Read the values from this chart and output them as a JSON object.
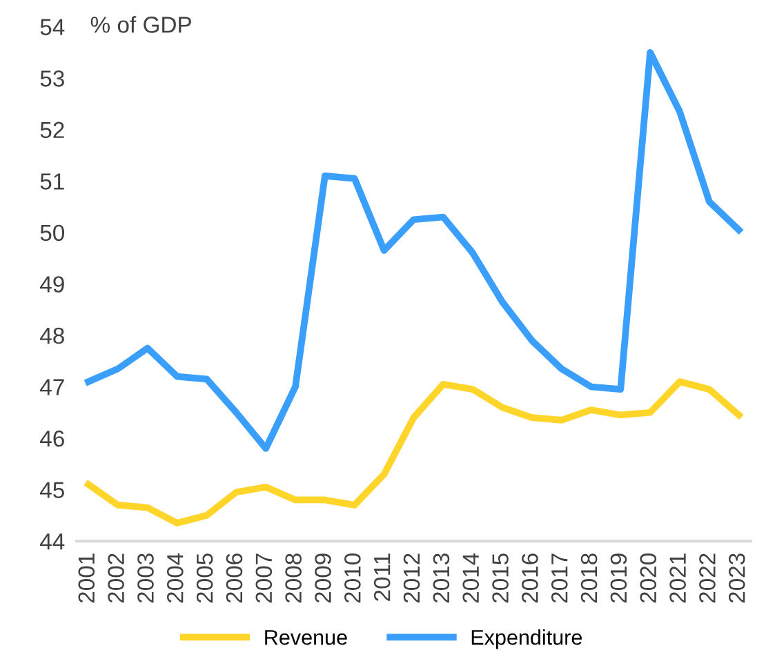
{
  "chart_data": {
    "type": "line",
    "ylabel": "% of GDP",
    "categories": [
      "2001",
      "2002",
      "2003",
      "2004",
      "2005",
      "2006",
      "2007",
      "2008",
      "2009",
      "2010",
      "2011",
      "2012",
      "2013",
      "2014",
      "2015",
      "2016",
      "2017",
      "2018",
      "2019",
      "2020",
      "2021",
      "2022",
      "2023"
    ],
    "series": [
      {
        "name": "Revenue",
        "color": "#ffd52a",
        "values": [
          45.1,
          44.7,
          44.65,
          44.35,
          44.5,
          44.95,
          45.05,
          44.8,
          44.8,
          44.7,
          45.3,
          46.4,
          47.05,
          46.95,
          46.6,
          46.4,
          46.35,
          46.55,
          46.45,
          46.5,
          47.1,
          46.95,
          46.45
        ]
      },
      {
        "name": "Expenditure",
        "color": "#3a9ffb",
        "values": [
          47.1,
          47.35,
          47.75,
          47.2,
          47.15,
          46.5,
          45.8,
          47.0,
          51.1,
          51.05,
          49.65,
          50.25,
          50.3,
          49.6,
          48.65,
          47.9,
          47.35,
          47.0,
          46.95,
          53.5,
          52.35,
          50.6,
          50.05
        ]
      }
    ],
    "ylim": [
      44,
      54
    ],
    "yticks": [
      44,
      45,
      46,
      47,
      48,
      49,
      50,
      51,
      52,
      53,
      54
    ],
    "grid": false,
    "legend": "bottom",
    "marker": "none",
    "line_style": "solid"
  }
}
